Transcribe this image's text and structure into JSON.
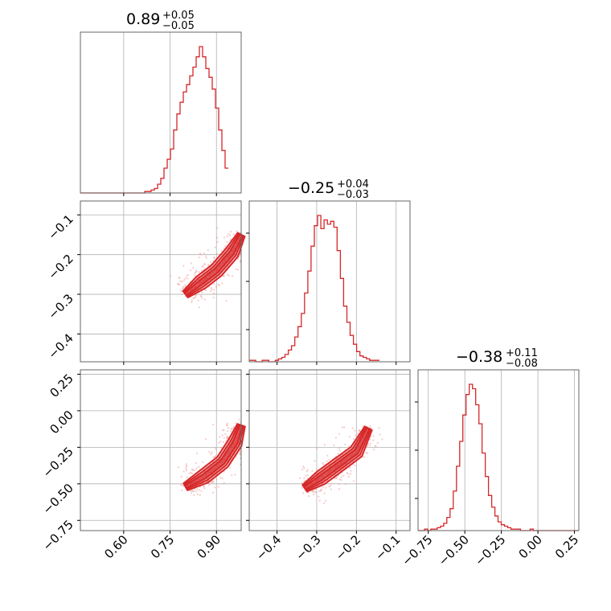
{
  "chart_data": {
    "type": "corner",
    "color": "#d62728",
    "parameters": [
      {
        "title_value": "0.89",
        "title_plus": "+0.05",
        "title_minus": "−0.05",
        "range": [
          0.46,
          0.98
        ],
        "ticks": [
          0.6,
          0.75,
          0.9
        ],
        "tick_labels": [
          "0.60",
          "0.75",
          "0.90"
        ]
      },
      {
        "title_value": "−0.25",
        "title_plus": "+0.04",
        "title_minus": "−0.03",
        "range": [
          -0.47,
          -0.065
        ],
        "ticks": [
          -0.4,
          -0.3,
          -0.2,
          -0.1
        ],
        "tick_labels": [
          "−0.4",
          "−0.3",
          "−0.2",
          "−0.1"
        ]
      },
      {
        "title_value": "−0.38",
        "title_plus": "+0.11",
        "title_minus": "−0.08",
        "range": [
          -0.82,
          0.28
        ],
        "ticks": [
          -0.75,
          -0.5,
          -0.25,
          0.0,
          0.25
        ],
        "tick_labels": [
          "−0.75",
          "−0.50",
          "−0.25",
          "0.00",
          "0.25"
        ]
      }
    ],
    "histograms": [
      {
        "param": 0,
        "bin_start": 0.46,
        "bin_width": 0.0104,
        "counts": [
          0,
          0,
          0,
          0,
          0,
          0,
          0,
          0,
          0,
          0,
          0,
          0,
          0,
          0,
          0,
          0,
          0,
          0,
          0,
          0,
          1,
          1,
          2,
          3,
          6,
          10,
          17,
          23,
          30,
          43,
          54,
          62,
          69,
          74,
          80,
          86,
          93,
          100,
          93,
          85,
          79,
          71,
          58,
          43,
          29,
          17
        ]
      },
      {
        "param": 1,
        "bin_start": -0.47,
        "bin_width": 0.0082,
        "counts": [
          1,
          1,
          0,
          0,
          1,
          1,
          0,
          0,
          1,
          2,
          3,
          5,
          8,
          11,
          17,
          24,
          33,
          47,
          62,
          79,
          93,
          100,
          91,
          97,
          94,
          96,
          92,
          76,
          57,
          38,
          27,
          18,
          12,
          7,
          4,
          3,
          2,
          1,
          1,
          1
        ]
      },
      {
        "param": 2,
        "bin_start": -0.82,
        "bin_width": 0.0219,
        "counts": [
          0,
          0,
          1,
          0,
          1,
          1,
          2,
          3,
          5,
          9,
          15,
          27,
          44,
          61,
          79,
          93,
          100,
          97,
          86,
          73,
          53,
          37,
          24,
          16,
          10,
          6,
          4,
          3,
          2,
          1,
          1,
          1,
          0,
          0,
          0,
          1,
          0,
          0,
          0,
          0,
          0,
          0,
          0,
          0,
          0,
          0,
          0,
          0,
          0,
          0
        ]
      }
    ],
    "pairs": [
      {
        "x_param": 0,
        "y_param": 1,
        "ridge": [
          [
            0.8,
            -0.3
          ],
          [
            0.85,
            -0.27
          ],
          [
            0.9,
            -0.24
          ],
          [
            0.95,
            -0.195
          ],
          [
            0.98,
            -0.15
          ]
        ]
      },
      {
        "x_param": 0,
        "y_param": 2,
        "ridge": [
          [
            0.8,
            -0.52
          ],
          [
            0.86,
            -0.45
          ],
          [
            0.92,
            -0.35
          ],
          [
            0.96,
            -0.22
          ],
          [
            0.98,
            -0.1
          ]
        ]
      },
      {
        "x_param": 1,
        "y_param": 2,
        "ridge": [
          [
            -0.33,
            -0.53
          ],
          [
            -0.29,
            -0.46
          ],
          [
            -0.25,
            -0.38
          ],
          [
            -0.2,
            -0.28
          ],
          [
            -0.17,
            -0.12
          ]
        ]
      }
    ]
  }
}
